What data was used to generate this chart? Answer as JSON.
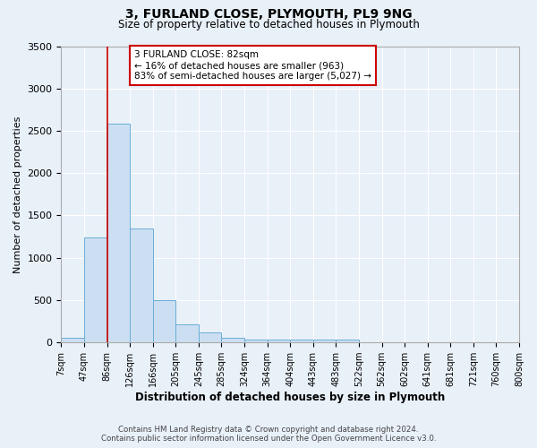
{
  "title": "3, FURLAND CLOSE, PLYMOUTH, PL9 9NG",
  "subtitle": "Size of property relative to detached houses in Plymouth",
  "xlabel": "Distribution of detached houses by size in Plymouth",
  "ylabel": "Number of detached properties",
  "bar_color": "#ccdff2",
  "bar_edge_color": "#6aaed6",
  "background_color": "#e8f0f8",
  "plot_bg_color": "#e8f0f8",
  "grid_color": "#ffffff",
  "annotation_box_color": "#ffffff",
  "annotation_box_edge": "#cc0000",
  "vline_color": "#cc0000",
  "vline_bin_index": 2,
  "annotation_title": "3 FURLAND CLOSE: 82sqm",
  "annotation_line1": "← 16% of detached houses are smaller (963)",
  "annotation_line2": "83% of semi-detached houses are larger (5,027) →",
  "footer_line1": "Contains HM Land Registry data © Crown copyright and database right 2024.",
  "footer_line2": "Contains public sector information licensed under the Open Government Licence v3.0.",
  "bin_labels": [
    "7sqm",
    "47sqm",
    "86sqm",
    "126sqm",
    "166sqm",
    "205sqm",
    "245sqm",
    "285sqm",
    "324sqm",
    "364sqm",
    "404sqm",
    "443sqm",
    "483sqm",
    "522sqm",
    "562sqm",
    "602sqm",
    "641sqm",
    "681sqm",
    "721sqm",
    "760sqm",
    "800sqm"
  ],
  "bar_heights": [
    55,
    1240,
    2580,
    1350,
    500,
    210,
    120,
    55,
    35,
    30,
    35,
    30,
    30,
    0,
    0,
    0,
    0,
    0,
    0,
    0
  ],
  "ylim": [
    0,
    3500
  ],
  "yticks": [
    0,
    500,
    1000,
    1500,
    2000,
    2500,
    3000,
    3500
  ]
}
